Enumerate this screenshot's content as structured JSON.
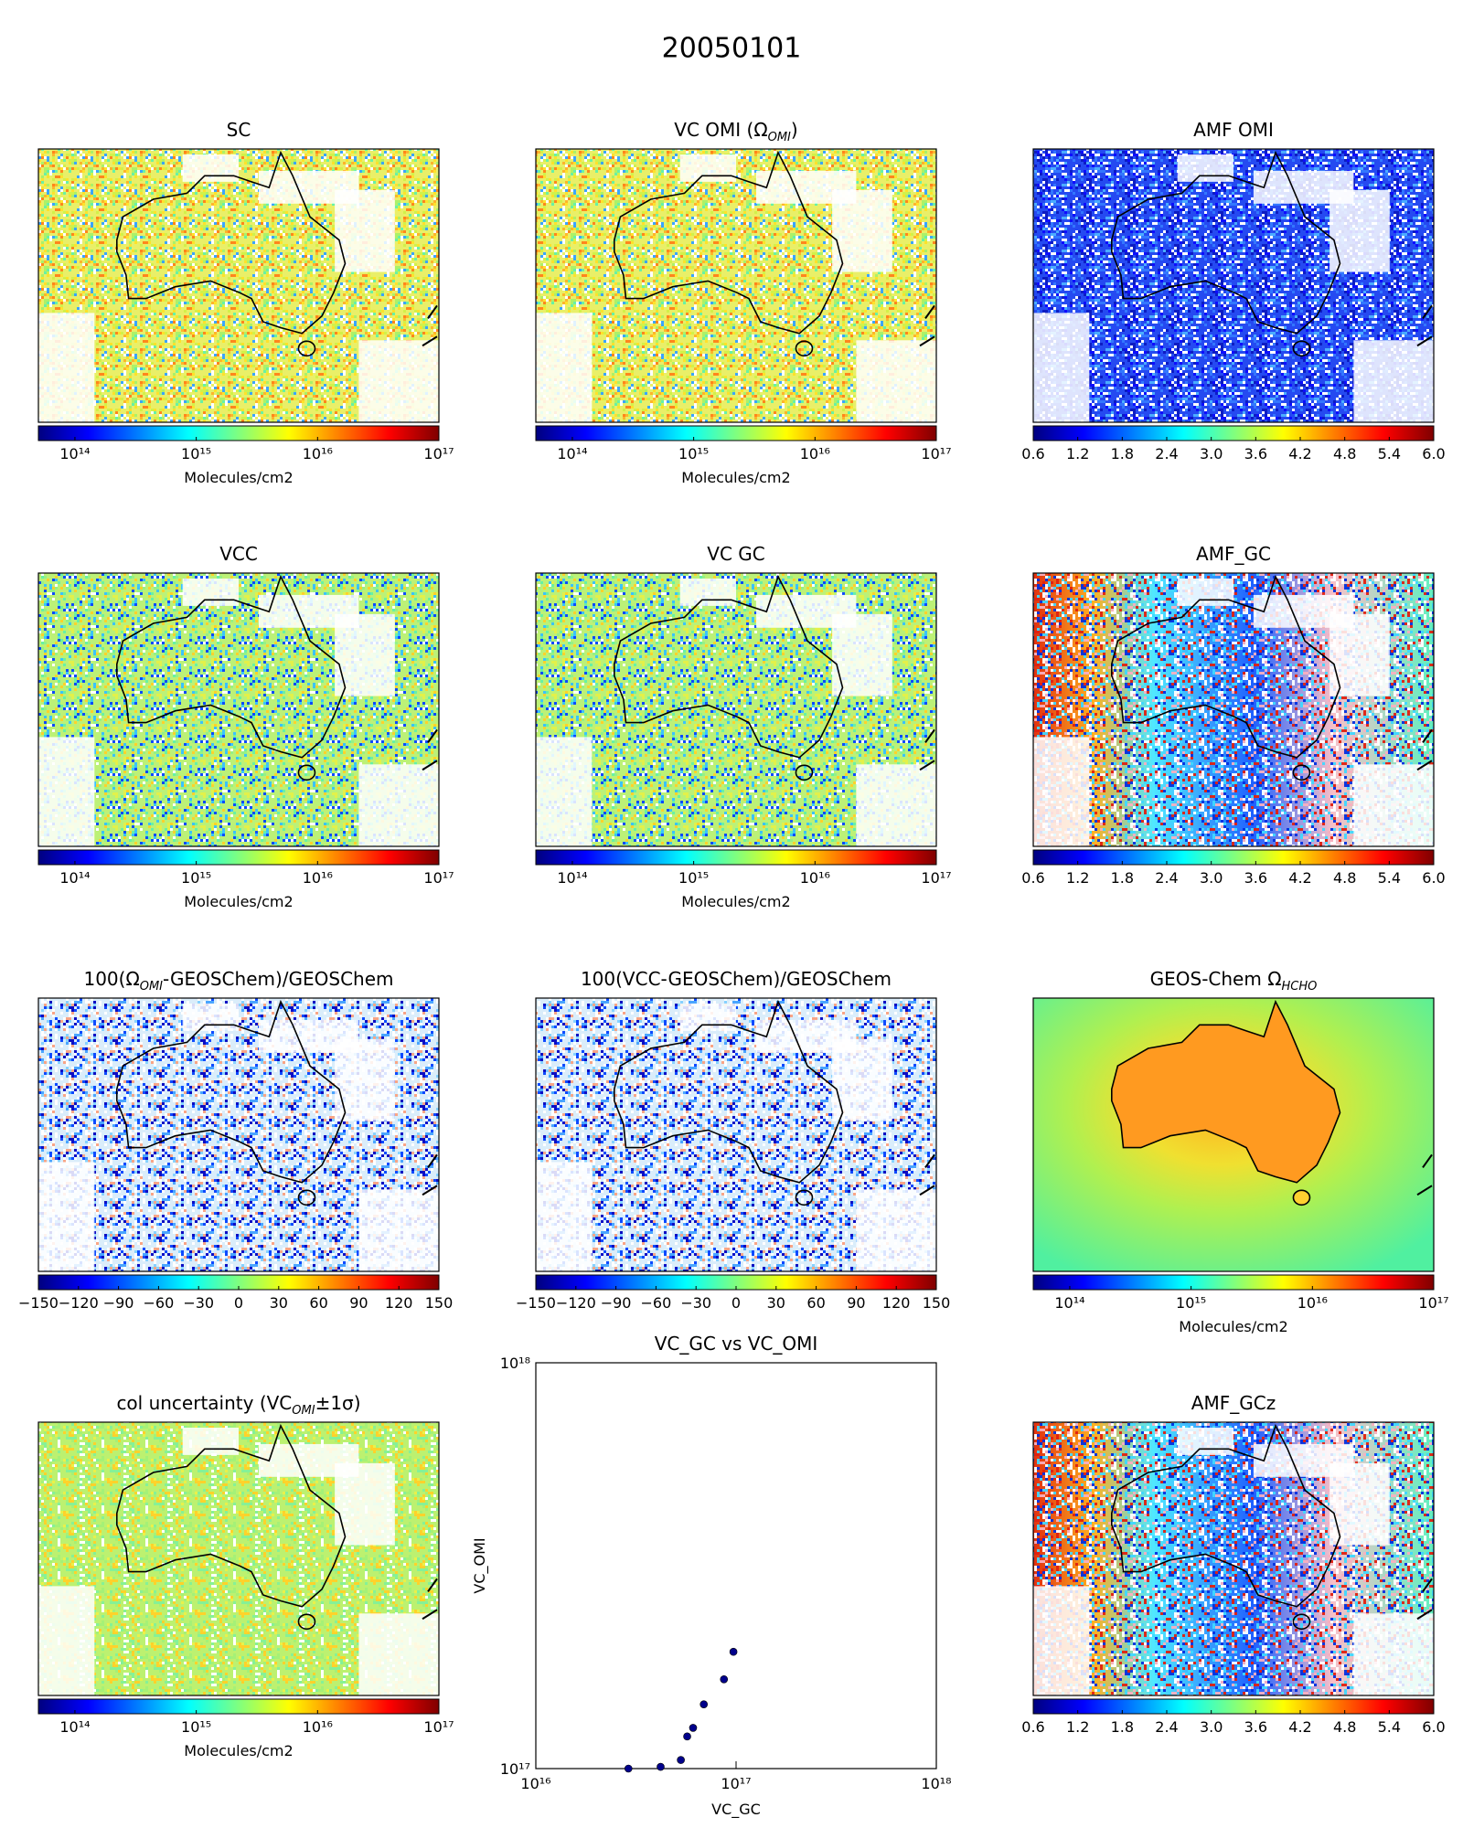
{
  "title": "20050101",
  "chart_data": [
    {
      "type": "map",
      "title": [
        "SC"
      ],
      "colorbar": {
        "log_scale": true,
        "clim": [
          50000000000000,
          100000000000000000
        ],
        "label": "Molecules/cm2",
        "cticks": [
          {
            "value": 100000000000000,
            "label": "10¹⁴"
          },
          {
            "value": 1000000000000000,
            "label": "10¹⁵"
          },
          {
            "value": 10000000000000000,
            "label": "10¹⁶"
          },
          {
            "value": 100000000000000000,
            "label": "10¹⁷"
          }
        ]
      }
    },
    {
      "type": "map",
      "title": [
        "VC OMI (Ω",
        "OMI",
        ")"
      ],
      "colorbar": {
        "log_scale": true,
        "clim": [
          50000000000000,
          100000000000000000
        ],
        "label": "Molecules/cm2",
        "cticks": [
          {
            "value": 100000000000000,
            "label": "10¹⁴"
          },
          {
            "value": 1000000000000000,
            "label": "10¹⁵"
          },
          {
            "value": 10000000000000000,
            "label": "10¹⁶"
          },
          {
            "value": 100000000000000000,
            "label": "10¹⁷"
          }
        ]
      }
    },
    {
      "type": "map",
      "title": [
        "AMF OMI"
      ],
      "colorbar": {
        "log_scale": false,
        "clim": [
          0.6,
          6
        ],
        "cticks": [
          0.6,
          1.2,
          1.8,
          2.4,
          {
            "value": 3,
            "label": "3.0"
          },
          3.6,
          4.2,
          4.8,
          5.4,
          {
            "value": 6,
            "label": "6.0"
          }
        ]
      }
    },
    {
      "type": "map",
      "title": [
        "VCC"
      ],
      "colorbar": {
        "log_scale": true,
        "clim": [
          50000000000000,
          100000000000000000
        ],
        "label": "Molecules/cm2",
        "cticks": [
          {
            "value": 100000000000000,
            "label": "10¹⁴"
          },
          {
            "value": 1000000000000000,
            "label": "10¹⁵"
          },
          {
            "value": 10000000000000000,
            "label": "10¹⁶"
          },
          {
            "value": 100000000000000000,
            "label": "10¹⁷"
          }
        ]
      }
    },
    {
      "type": "map",
      "title": [
        "VC GC"
      ],
      "colorbar": {
        "log_scale": true,
        "clim": [
          50000000000000,
          100000000000000000
        ],
        "label": "Molecules/cm2",
        "cticks": [
          {
            "value": 100000000000000,
            "label": "10¹⁴"
          },
          {
            "value": 1000000000000000,
            "label": "10¹⁵"
          },
          {
            "value": 10000000000000000,
            "label": "10¹⁶"
          },
          {
            "value": 100000000000000000,
            "label": "10¹⁷"
          }
        ]
      }
    },
    {
      "type": "map",
      "title": [
        "AMF_GC"
      ],
      "colorbar": {
        "log_scale": false,
        "clim": [
          0.6,
          6
        ],
        "cticks": [
          0.6,
          1.2,
          1.8,
          2.4,
          {
            "value": 3,
            "label": "3.0"
          },
          3.6,
          4.2,
          4.8,
          5.4,
          {
            "value": 6,
            "label": "6.0"
          }
        ]
      }
    },
    {
      "type": "map",
      "title": [
        "100(Ω",
        "OMI",
        "-GEOSChem)/GEOSChem"
      ],
      "colorbar": {
        "log_scale": false,
        "clim": [
          -150,
          150
        ],
        "cticks": [
          {
            "value": -150,
            "label": "−150"
          },
          {
            "value": -120,
            "label": "−120"
          },
          {
            "value": -90,
            "label": "−90"
          },
          {
            "value": -60,
            "label": "−60"
          },
          {
            "value": -30,
            "label": "−30"
          },
          0,
          30,
          60,
          90,
          120,
          150
        ]
      }
    },
    {
      "type": "map",
      "title": [
        "100(VCC-GEOSChem)/GEOSChem"
      ],
      "colorbar": {
        "log_scale": false,
        "clim": [
          -150,
          150
        ],
        "cticks": [
          {
            "value": -150,
            "label": "−150"
          },
          {
            "value": -120,
            "label": "−120"
          },
          {
            "value": -90,
            "label": "−90"
          },
          {
            "value": -60,
            "label": "−60"
          },
          {
            "value": -30,
            "label": "−30"
          },
          0,
          30,
          60,
          90,
          120,
          150
        ]
      }
    },
    {
      "type": "map",
      "title": [
        "GEOS-Chem Ω",
        "HCHO"
      ],
      "colorbar": {
        "log_scale": true,
        "clim": [
          50000000000000,
          100000000000000000
        ],
        "label": "Molecules/cm2",
        "cticks": [
          {
            "value": 100000000000000,
            "label": "10¹⁴"
          },
          {
            "value": 1000000000000000,
            "label": "10¹⁵"
          },
          {
            "value": 10000000000000000,
            "label": "10¹⁶"
          },
          {
            "value": 100000000000000000,
            "label": "10¹⁷"
          }
        ]
      }
    },
    {
      "type": "map",
      "title": [
        "col uncertainty (VC",
        "OMI",
        "±1σ)"
      ],
      "colorbar": {
        "log_scale": true,
        "clim": [
          50000000000000,
          100000000000000000
        ],
        "label": "Molecules/cm2",
        "cticks": [
          {
            "value": 100000000000000,
            "label": "10¹⁴"
          },
          {
            "value": 1000000000000000,
            "label": "10¹⁵"
          },
          {
            "value": 10000000000000000,
            "label": "10¹⁶"
          },
          {
            "value": 100000000000000000,
            "label": "10¹⁷"
          }
        ]
      }
    },
    {
      "type": "scatter",
      "title": [
        "VC_GC vs VC_OMI"
      ],
      "xlabel": "VC_GC",
      "ylabel": "VC_OMI",
      "log_scale": true,
      "color": "#00008b",
      "x": [
        29000000000000000,
        42000000000000000,
        53000000000000000,
        57000000000000000,
        61000000000000000,
        69000000000000000,
        87000000000000000,
        97000000000000000
      ],
      "values": [
        100000000000000000,
        101000000000000000,
        105000000000000000,
        120000000000000000,
        126000000000000000,
        144000000000000000,
        166000000000000000,
        194000000000000000
      ],
      "xlim": [
        10000000000000000,
        1000000000000000000
      ],
      "ylim": [
        100000000000000000,
        1000000000000000000
      ],
      "xticks": [
        {
          "value": 10000000000000000,
          "label": "10¹⁶"
        },
        {
          "value": 100000000000000000,
          "label": "10¹⁷"
        },
        {
          "value": 1000000000000000000,
          "label": "10¹⁸"
        }
      ],
      "yticks": [
        {
          "value": 100000000000000000,
          "label": "10¹⁷"
        },
        {
          "value": 1000000000000000000,
          "label": "10¹⁸"
        }
      ]
    },
    {
      "type": "map",
      "title": [
        "AMF_GCz"
      ],
      "colorbar": {
        "log_scale": false,
        "clim": [
          0.6,
          6
        ],
        "cticks": [
          0.6,
          1.2,
          1.8,
          2.4,
          {
            "value": 3,
            "label": "3.0"
          },
          3.6,
          4.2,
          4.8,
          5.4,
          {
            "value": 6,
            "label": "6.0"
          }
        ]
      }
    }
  ]
}
